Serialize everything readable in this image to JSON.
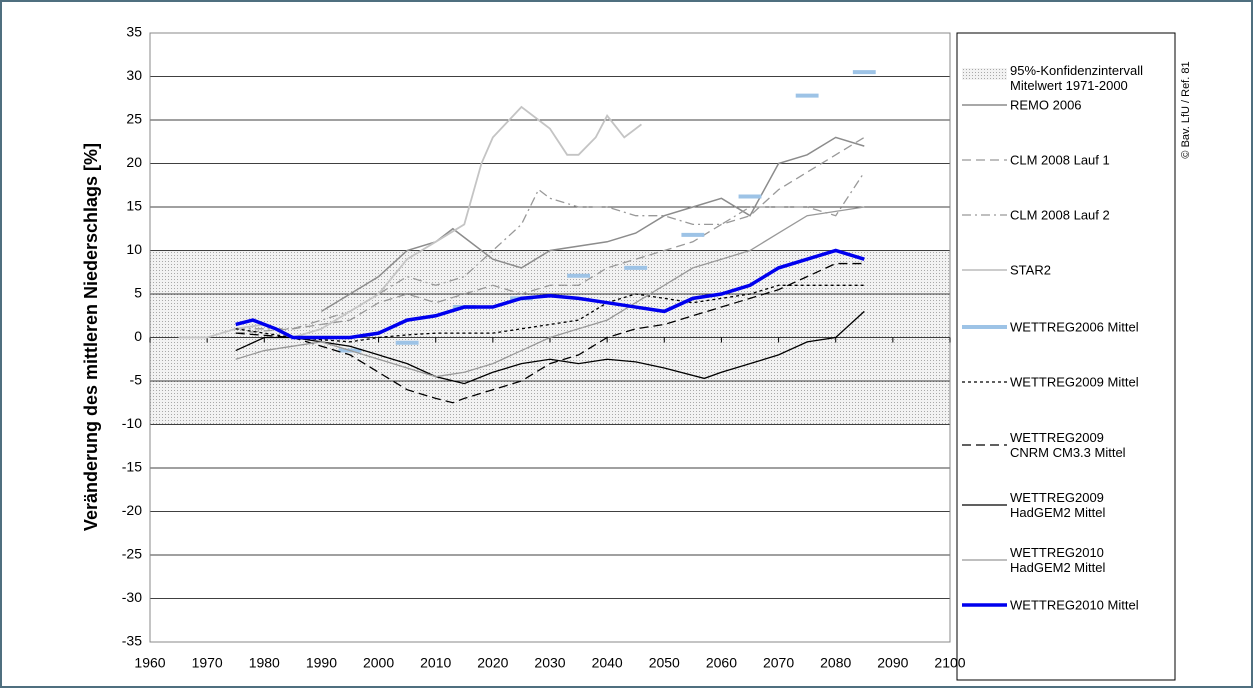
{
  "chart_data": {
    "type": "line",
    "y_label": "Veränderung des mittleren Niederschlags [%]",
    "credit": "© Bav. LfU / Ref. 81",
    "xlim": [
      1960,
      2100
    ],
    "xticks": [
      1960,
      1970,
      1980,
      1990,
      2000,
      2010,
      2020,
      2030,
      2040,
      2050,
      2060,
      2070,
      2080,
      2090,
      2100
    ],
    "ylim": [
      -35,
      35
    ],
    "yticks": [
      -35,
      -30,
      -25,
      -20,
      -15,
      -10,
      -5,
      0,
      5,
      10,
      15,
      20,
      25,
      30,
      35
    ],
    "grid": true,
    "band": {
      "name": "95%-Konfidenzintervall\nMitelwert 1971-2000",
      "range": [
        -10,
        10
      ],
      "color": "#c8c8c8"
    },
    "series": [
      {
        "name": "REMO 2006",
        "color": "#8c8c8c",
        "dash": "solid",
        "width": 1.5,
        "x": [
          1990,
          2000,
          2005,
          2010,
          2013,
          2020,
          2025,
          2030,
          2040,
          2045,
          2050,
          2055,
          2060,
          2065,
          2070,
          2075,
          2080,
          2085
        ],
        "values": [
          3,
          7,
          10,
          11,
          12.5,
          9,
          8,
          10,
          11,
          12,
          14,
          15,
          16,
          14,
          20,
          21,
          23,
          22
        ]
      },
      {
        "name": "CLM 2008 Lauf 1",
        "color": "#999999",
        "dash": "dashed",
        "width": 1.3,
        "x": [
          1975,
          1985,
          1995,
          2000,
          2005,
          2010,
          2015,
          2020,
          2025,
          2030,
          2035,
          2040,
          2045,
          2050,
          2055,
          2060,
          2065,
          2070,
          2075,
          2080,
          2085
        ],
        "values": [
          0.5,
          1,
          2,
          4,
          5,
          4,
          5,
          6,
          5,
          6,
          6,
          8,
          9,
          10,
          11,
          13,
          14,
          17,
          19,
          21,
          23
        ]
      },
      {
        "name": "CLM 2008 Lauf 2",
        "color": "#999999",
        "dash": "dashdot",
        "width": 1.3,
        "x": [
          1975,
          1985,
          1995,
          2000,
          2005,
          2010,
          2015,
          2020,
          2025,
          2028,
          2030,
          2035,
          2040,
          2045,
          2050,
          2055,
          2060,
          2065,
          2070,
          2075,
          2080,
          2085
        ],
        "values": [
          1,
          1,
          3,
          5,
          7,
          6,
          7,
          10,
          13,
          17,
          16,
          15,
          15,
          14,
          14,
          13,
          13,
          15,
          15,
          15,
          14,
          19
        ]
      },
      {
        "name": "STAR2",
        "color": "#c4c4c4",
        "dash": "solid",
        "width": 1.8,
        "x": [
          1965,
          1970,
          1975,
          1980,
          1985,
          1990,
          1995,
          2000,
          2005,
          2010,
          2015,
          2018,
          2020,
          2025,
          2028,
          2030,
          2033,
          2035,
          2038,
          2040,
          2043,
          2046
        ],
        "values": [
          0,
          0,
          1,
          1.5,
          0,
          1,
          3,
          5,
          9,
          11,
          13,
          20,
          23,
          26.5,
          25,
          24,
          21,
          21,
          23,
          25.5,
          23,
          24.5
        ]
      },
      {
        "name": "WETTREG2006 Mittel",
        "color": "#9dc3e6",
        "dash": "segments",
        "width": 4,
        "x": [
          1995,
          2005,
          2015,
          2025,
          2035,
          2045,
          2055,
          2065,
          2075,
          2085
        ],
        "values": [
          -1.5,
          -0.6,
          3.5,
          4.5,
          7.1,
          8,
          11.8,
          16.2,
          27.8,
          30.5
        ]
      },
      {
        "name": "WETTREG2009 Mittel",
        "color": "#000000",
        "dash": "dotted",
        "width": 1.3,
        "x": [
          1975,
          1985,
          1995,
          2000,
          2005,
          2010,
          2020,
          2025,
          2030,
          2035,
          2040,
          2045,
          2050,
          2055,
          2060,
          2065,
          2070,
          2075,
          2080,
          2085
        ],
        "values": [
          1,
          0,
          -0.5,
          0,
          0.3,
          0.5,
          0.5,
          1,
          1.5,
          2,
          4,
          5,
          4.5,
          4,
          4.5,
          5,
          6,
          6,
          6,
          6
        ]
      },
      {
        "name": "WETTREG2009\nCNRM CM3.3 Mittel",
        "color": "#000000",
        "dash": "dashed",
        "width": 1.3,
        "x": [
          1975,
          1985,
          1990,
          1995,
          2000,
          2005,
          2010,
          2013,
          2015,
          2020,
          2025,
          2030,
          2035,
          2040,
          2045,
          2050,
          2055,
          2060,
          2065,
          2070,
          2075,
          2080,
          2085
        ],
        "values": [
          0.5,
          0,
          -1,
          -2,
          -4,
          -6,
          -7,
          -7.5,
          -7,
          -6,
          -5,
          -3,
          -2,
          0,
          1,
          1.5,
          2.5,
          3.5,
          4.5,
          5.5,
          7,
          8.5,
          8.5
        ]
      },
      {
        "name": "WETTREG2009\nHadGEM2 Mittel",
        "color": "#000000",
        "dash": "solid",
        "width": 1.3,
        "x": [
          1975,
          1980,
          1985,
          1990,
          1995,
          2000,
          2005,
          2010,
          2015,
          2020,
          2025,
          2030,
          2035,
          2040,
          2045,
          2050,
          2057,
          2060,
          2065,
          2070,
          2075,
          2080,
          2085
        ],
        "values": [
          -1.5,
          0,
          0,
          -0.5,
          -1,
          -2,
          -3,
          -4.5,
          -5.3,
          -4,
          -3,
          -2.5,
          -3,
          -2.5,
          -2.8,
          -3.5,
          -4.7,
          -4,
          -3,
          -2,
          -0.5,
          0,
          3
        ]
      },
      {
        "name": "WETTREG2010\nHadGEM2 Mittel",
        "color": "#999999",
        "dash": "solid",
        "width": 1.3,
        "x": [
          1975,
          1980,
          1985,
          1990,
          1995,
          2000,
          2005,
          2010,
          2015,
          2020,
          2025,
          2030,
          2035,
          2040,
          2045,
          2050,
          2055,
          2060,
          2065,
          2070,
          2075,
          2080,
          2085
        ],
        "values": [
          -2.5,
          -1.5,
          -1,
          -0.5,
          -1.5,
          -2.5,
          -3.5,
          -4.5,
          -4,
          -3,
          -1.5,
          0,
          1,
          2,
          4,
          6,
          8,
          9,
          10,
          12,
          14,
          14.5,
          15
        ]
      },
      {
        "name": "WETTREG2010 Mittel",
        "color": "#0000ee",
        "dash": "solid",
        "width": 3.5,
        "x": [
          1975,
          1978,
          1982,
          1985,
          1990,
          1995,
          2000,
          2005,
          2010,
          2015,
          2020,
          2025,
          2030,
          2035,
          2040,
          2045,
          2050,
          2055,
          2060,
          2065,
          2070,
          2075,
          2080,
          2085
        ],
        "values": [
          1.5,
          2,
          1,
          0,
          0,
          0,
          0.5,
          2,
          2.5,
          3.5,
          3.5,
          4.5,
          4.8,
          4.5,
          4,
          3.5,
          3,
          4.5,
          5,
          6,
          8,
          9,
          10,
          9
        ]
      }
    ]
  }
}
